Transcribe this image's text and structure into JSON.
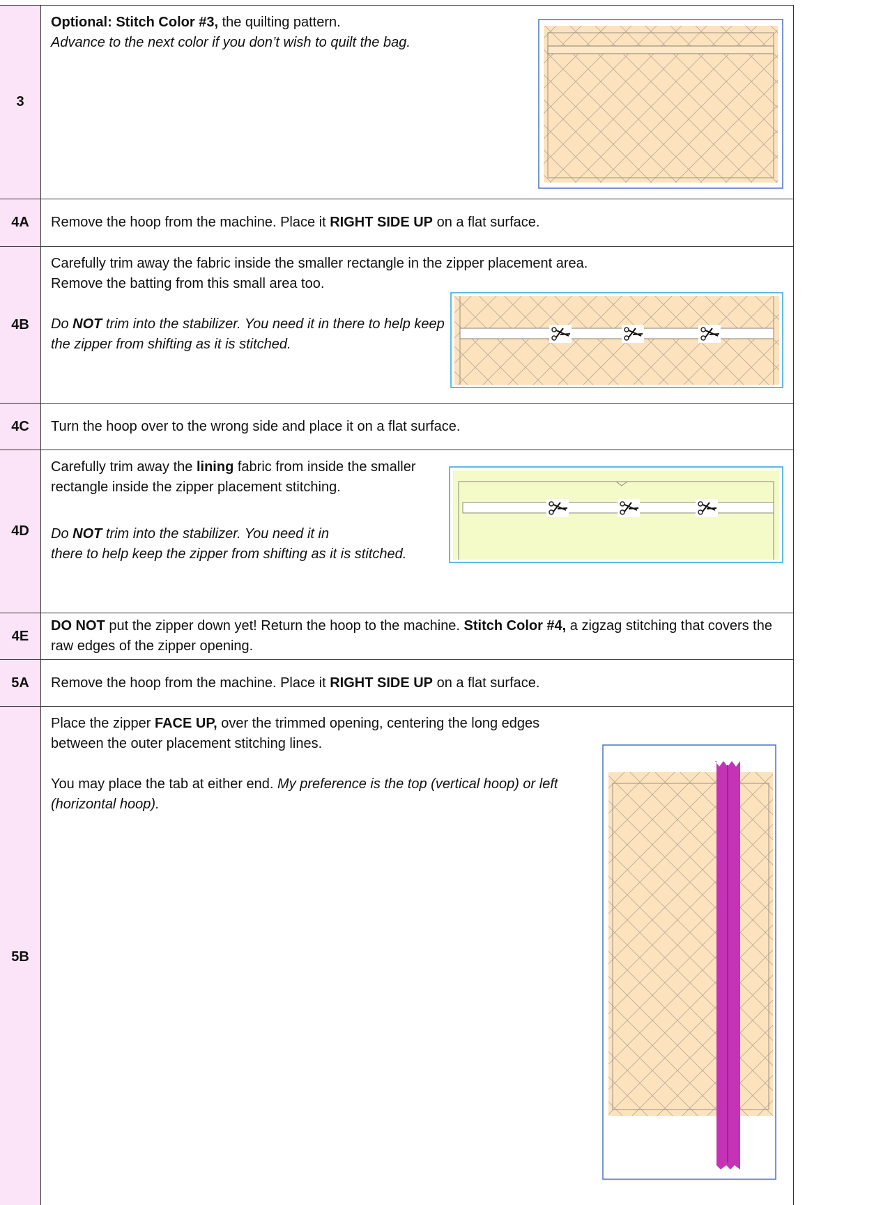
{
  "rows": [
    {
      "step": "3",
      "text": [
        "Optional: Stitch Color #3,",
        " the quilting pattern.",
        "Advance to the next color if you don’t wish to quilt the bag."
      ]
    },
    {
      "step": "4A",
      "text": [
        "Remove the hoop from the machine. Place it ",
        "RIGHT SIDE UP",
        " on a flat surface."
      ]
    },
    {
      "step": "4B",
      "text": [
        "Carefully trim away the fabric inside the smaller rectangle in the zipper placement area.",
        "Remove the batting from this small area too.",
        "Do ",
        "NOT",
        " trim into the stabilizer. You need it in there to help keep the zipper from shifting as it is stitched."
      ]
    },
    {
      "step": "4C",
      "text": [
        "Turn the hoop over to the wrong side and place it on a flat surface."
      ]
    },
    {
      "step": "4D",
      "text": [
        "Carefully trim away the ",
        "lining",
        " fabric from inside the smaller rectangle inside the zipper placement stitching.",
        "Do ",
        "NOT",
        " trim into the stabilizer. You need it in",
        "there to help keep the zipper from shifting as it is stitched."
      ]
    },
    {
      "step": "4E",
      "text": [
        "DO NOT",
        " put the zipper down yet! Return the hoop to the machine. ",
        "Stitch Color #4,",
        " a zigzag stitching that covers the raw edges of the zipper opening."
      ]
    },
    {
      "step": "5A",
      "text": [
        "Remove the hoop from the machine. Place it ",
        "RIGHT SIDE UP",
        " on a flat surface."
      ]
    },
    {
      "step": "5B",
      "text": [
        "Place the zipper ",
        "FACE UP,",
        " over the trimmed opening, centering the long edges between the outer placement stitching lines.",
        "You may place the tab at either end. ",
        "My preference is the top (vertical hoop) or left (horizontal hoop)."
      ]
    }
  ]
}
